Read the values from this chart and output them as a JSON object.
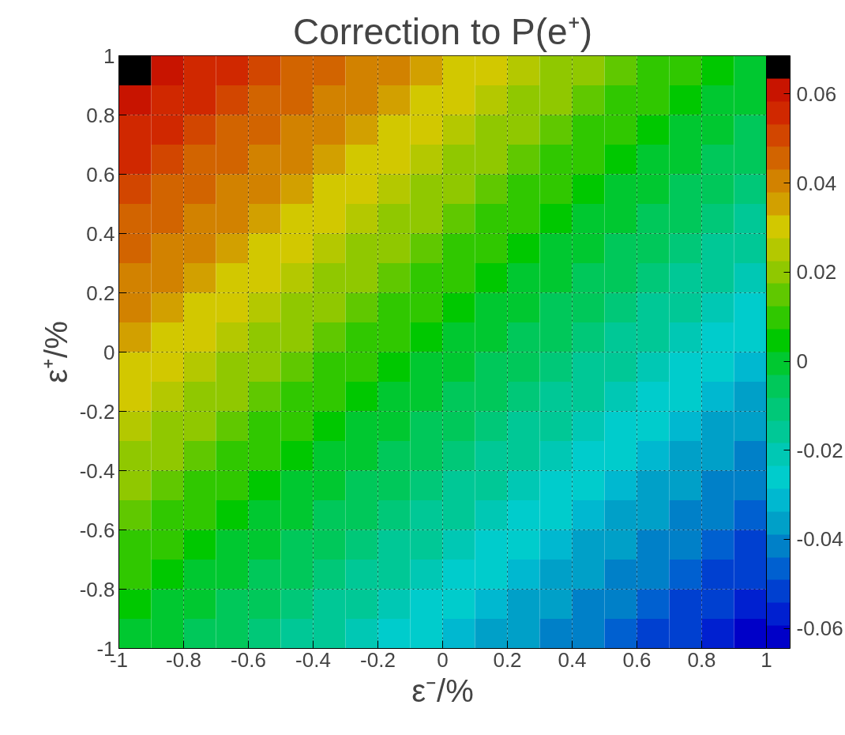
{
  "chart_data": {
    "type": "heatmap",
    "title": "Correction to P(e⁺)",
    "xlabel": "ε⁻/%",
    "ylabel": "ε⁺/%",
    "x": [
      -0.95,
      -0.85,
      -0.75,
      -0.65,
      -0.55,
      -0.45,
      -0.35,
      -0.25,
      -0.15,
      -0.05,
      0.05,
      0.15,
      0.25,
      0.35,
      0.45,
      0.55,
      0.65,
      0.75,
      0.85,
      0.95
    ],
    "xlim": [
      -1,
      1
    ],
    "ylim": [
      -1,
      1
    ],
    "xticks": [
      -1,
      -0.8,
      -0.6,
      -0.4,
      -0.2,
      0,
      0.2,
      0.4,
      0.6,
      0.8,
      1
    ],
    "yticks": [
      -1,
      -0.8,
      -0.6,
      -0.4,
      -0.2,
      0,
      0.2,
      0.4,
      0.6,
      0.8,
      1
    ],
    "clim": [
      -0.0645,
      0.0686
    ],
    "cticks": [
      -0.06,
      -0.04,
      -0.02,
      0,
      0.02,
      0.04,
      0.06
    ],
    "grid": true,
    "cells": [
      [
        0.065,
        0.061,
        0.058,
        0.055,
        0.051,
        0.048,
        0.045,
        0.042,
        0.038,
        0.035,
        0.032,
        0.028,
        0.025,
        0.022,
        0.018,
        0.015,
        0.012,
        0.009,
        0.005,
        0.002
      ],
      [
        0.061,
        0.058,
        0.055,
        0.051,
        0.048,
        0.045,
        0.042,
        0.038,
        0.035,
        0.032,
        0.028,
        0.025,
        0.022,
        0.018,
        0.015,
        0.012,
        0.009,
        0.005,
        0.002,
        -0.001
      ],
      [
        0.058,
        0.055,
        0.051,
        0.048,
        0.045,
        0.042,
        0.038,
        0.035,
        0.032,
        0.028,
        0.025,
        0.022,
        0.018,
        0.015,
        0.012,
        0.009,
        0.005,
        0.002,
        -0.001,
        -0.005
      ],
      [
        0.055,
        0.051,
        0.048,
        0.045,
        0.042,
        0.038,
        0.035,
        0.032,
        0.028,
        0.025,
        0.022,
        0.018,
        0.015,
        0.012,
        0.009,
        0.005,
        0.002,
        -0.001,
        -0.005,
        -0.008
      ],
      [
        0.051,
        0.048,
        0.045,
        0.042,
        0.038,
        0.035,
        0.032,
        0.028,
        0.025,
        0.022,
        0.018,
        0.015,
        0.012,
        0.009,
        0.005,
        0.002,
        -0.001,
        -0.005,
        -0.008,
        -0.011
      ],
      [
        0.048,
        0.045,
        0.042,
        0.038,
        0.035,
        0.032,
        0.028,
        0.025,
        0.022,
        0.018,
        0.015,
        0.012,
        0.009,
        0.005,
        0.002,
        -0.001,
        -0.005,
        -0.008,
        -0.011,
        -0.015
      ],
      [
        0.045,
        0.042,
        0.038,
        0.035,
        0.032,
        0.028,
        0.025,
        0.022,
        0.018,
        0.015,
        0.012,
        0.009,
        0.005,
        0.002,
        -0.001,
        -0.005,
        -0.008,
        -0.011,
        -0.015,
        -0.018
      ],
      [
        0.042,
        0.038,
        0.035,
        0.032,
        0.028,
        0.025,
        0.022,
        0.018,
        0.015,
        0.012,
        0.009,
        0.005,
        0.002,
        -0.001,
        -0.005,
        -0.008,
        -0.011,
        -0.015,
        -0.018,
        -0.021
      ],
      [
        0.038,
        0.035,
        0.032,
        0.028,
        0.025,
        0.022,
        0.018,
        0.015,
        0.012,
        0.009,
        0.005,
        0.002,
        -0.001,
        -0.005,
        -0.008,
        -0.011,
        -0.015,
        -0.018,
        -0.021,
        -0.024
      ],
      [
        0.035,
        0.032,
        0.028,
        0.025,
        0.022,
        0.018,
        0.015,
        0.012,
        0.009,
        0.005,
        0.002,
        -0.001,
        -0.005,
        -0.008,
        -0.011,
        -0.015,
        -0.018,
        -0.021,
        -0.024,
        -0.028
      ],
      [
        0.032,
        0.028,
        0.025,
        0.022,
        0.018,
        0.015,
        0.012,
        0.009,
        0.005,
        0.002,
        -0.001,
        -0.005,
        -0.008,
        -0.011,
        -0.015,
        -0.018,
        -0.021,
        -0.024,
        -0.028,
        -0.031
      ],
      [
        0.028,
        0.025,
        0.022,
        0.018,
        0.015,
        0.012,
        0.009,
        0.005,
        0.002,
        -0.001,
        -0.005,
        -0.008,
        -0.011,
        -0.015,
        -0.018,
        -0.021,
        -0.024,
        -0.028,
        -0.031,
        -0.034
      ],
      [
        0.025,
        0.022,
        0.018,
        0.015,
        0.012,
        0.009,
        0.005,
        0.002,
        -0.001,
        -0.005,
        -0.008,
        -0.011,
        -0.015,
        -0.018,
        -0.021,
        -0.024,
        -0.028,
        -0.031,
        -0.034,
        -0.038
      ],
      [
        0.022,
        0.018,
        0.015,
        0.012,
        0.009,
        0.005,
        0.002,
        -0.001,
        -0.005,
        -0.008,
        -0.011,
        -0.015,
        -0.018,
        -0.021,
        -0.024,
        -0.028,
        -0.031,
        -0.034,
        -0.038,
        -0.041
      ],
      [
        0.018,
        0.015,
        0.012,
        0.009,
        0.005,
        0.002,
        -0.001,
        -0.005,
        -0.008,
        -0.011,
        -0.015,
        -0.018,
        -0.021,
        -0.024,
        -0.028,
        -0.031,
        -0.034,
        -0.038,
        -0.041,
        -0.044
      ],
      [
        0.015,
        0.012,
        0.009,
        0.005,
        0.002,
        -0.001,
        -0.005,
        -0.008,
        -0.011,
        -0.015,
        -0.018,
        -0.021,
        -0.024,
        -0.028,
        -0.031,
        -0.034,
        -0.038,
        -0.041,
        -0.044,
        -0.048
      ],
      [
        0.012,
        0.009,
        0.005,
        0.002,
        -0.001,
        -0.005,
        -0.008,
        -0.011,
        -0.015,
        -0.018,
        -0.021,
        -0.024,
        -0.028,
        -0.031,
        -0.034,
        -0.038,
        -0.041,
        -0.044,
        -0.048,
        -0.051
      ],
      [
        0.009,
        0.005,
        0.002,
        -0.001,
        -0.005,
        -0.008,
        -0.011,
        -0.015,
        -0.018,
        -0.021,
        -0.024,
        -0.028,
        -0.031,
        -0.034,
        -0.038,
        -0.041,
        -0.044,
        -0.048,
        -0.051,
        -0.054
      ],
      [
        0.005,
        0.002,
        -0.001,
        -0.005,
        -0.008,
        -0.011,
        -0.015,
        -0.018,
        -0.021,
        -0.024,
        -0.028,
        -0.031,
        -0.034,
        -0.038,
        -0.041,
        -0.044,
        -0.048,
        -0.051,
        -0.054,
        -0.057
      ],
      [
        0.002,
        -0.001,
        -0.005,
        -0.008,
        -0.011,
        -0.015,
        -0.018,
        -0.021,
        -0.024,
        -0.028,
        -0.031,
        -0.034,
        -0.038,
        -0.041,
        -0.044,
        -0.048,
        -0.051,
        -0.054,
        -0.057,
        -0.061
      ]
    ]
  }
}
